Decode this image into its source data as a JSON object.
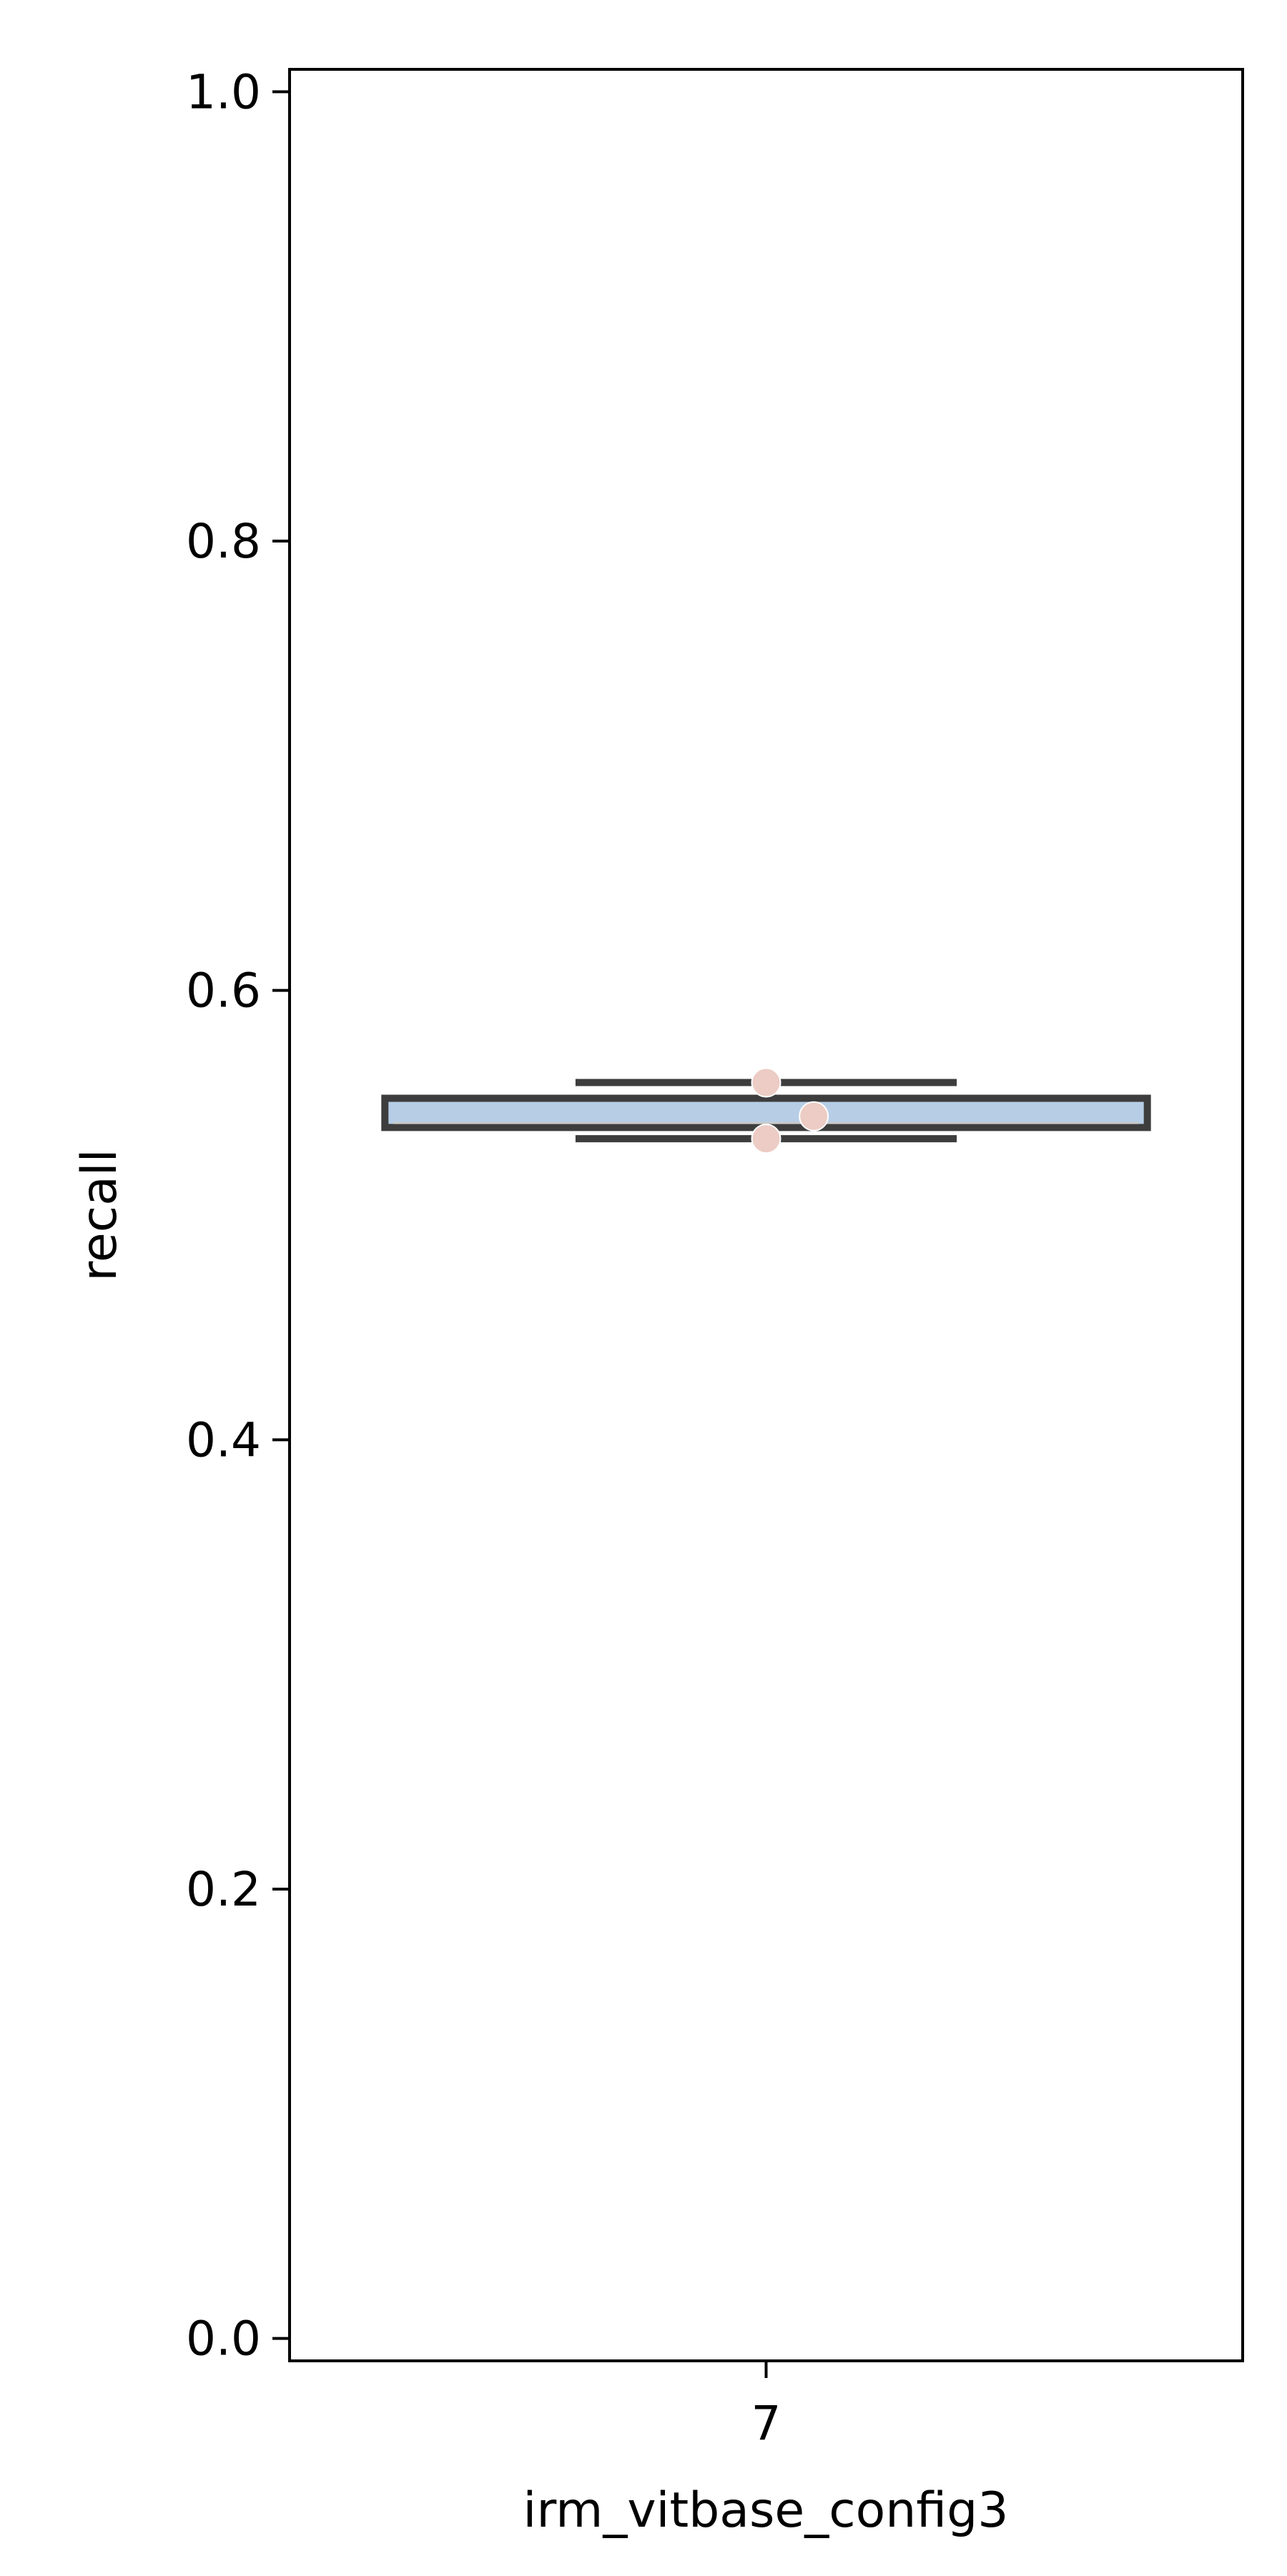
{
  "chart_data": {
    "type": "box",
    "xlabel": "irm_vitbase_config3",
    "ylabel": "recall",
    "ylim": [
      -0.01,
      1.01
    ],
    "yticks": [
      0.0,
      0.2,
      0.4,
      0.6,
      0.8,
      1.0
    ],
    "ytick_labels": [
      "0.0",
      "0.2",
      "0.4",
      "0.6",
      "0.8",
      "1.0"
    ],
    "categories": [
      "7"
    ],
    "boxes": [
      {
        "category": "7",
        "whisker_low": 0.534,
        "q1": 0.539,
        "median": 0.546,
        "q3": 0.552,
        "whisker_high": 0.559,
        "mean_line": 0.541
      }
    ],
    "points": [
      {
        "category": "7",
        "y": 0.559,
        "offset": 0.0
      },
      {
        "category": "7",
        "y": 0.544,
        "offset": 0.05
      },
      {
        "category": "7",
        "y": 0.534,
        "offset": 0.0
      }
    ],
    "colors": {
      "box_edge": "#3d3d3d",
      "box_fill": "#b7cde6",
      "median": "#b7cde6",
      "point": "#ecccc4",
      "axis": "#000000"
    },
    "grid": false,
    "legend": "none"
  }
}
